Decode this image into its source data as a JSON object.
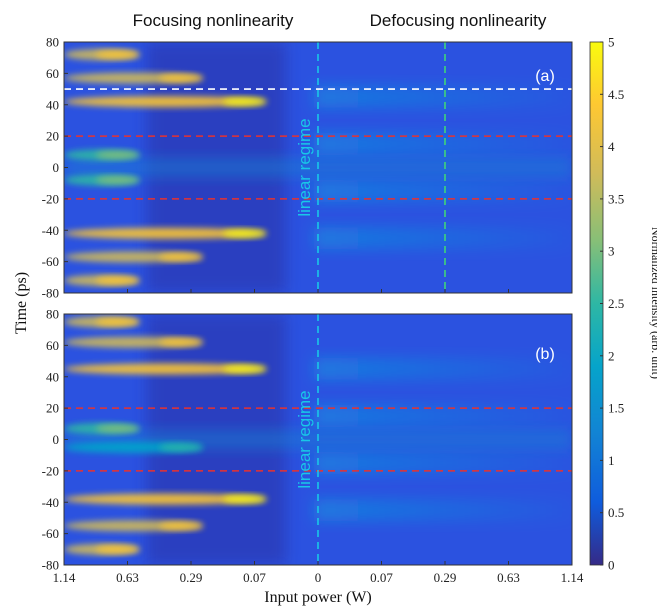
{
  "chart_data": {
    "type": "heatmap",
    "header_left": "Focusing nonlinearity",
    "header_right": "Defocusing nonlinearity",
    "xlabel": "Input power (W)",
    "ylabel": "Time (ps)",
    "colorbar_label": "Normalized intensity (arb. unit)",
    "colorbar_range": [
      0,
      5
    ],
    "colorbar_ticks": [
      "0",
      "0.5",
      "1",
      "1.5",
      "2",
      "2.5",
      "3",
      "3.5",
      "4",
      "4.5",
      "5"
    ],
    "x_ticks": [
      "1.14",
      "0.63",
      "0.29",
      "0.07",
      "0",
      "0.07",
      "0.29",
      "0.63",
      "1.14"
    ],
    "y_ticks": [
      "80",
      "60",
      "40",
      "20",
      "0",
      "-20",
      "-40",
      "-60",
      "-80"
    ],
    "ylim": [
      -80,
      80
    ],
    "colormap": "parula",
    "colors": {
      "background": "#2b52e0",
      "red_line": "#e8322f",
      "white_line": "#ffffff",
      "cyan_line": "#19c7e8",
      "green_line": "#3fd47a"
    },
    "panels": [
      {
        "label": "(a)",
        "regime_text": "linear regime",
        "lines": [
          {
            "orientation": "horizontal",
            "color": "white",
            "time_ps": 50
          },
          {
            "orientation": "horizontal",
            "color": "red",
            "time_ps": 20
          },
          {
            "orientation": "horizontal",
            "color": "red",
            "time_ps": -20
          },
          {
            "orientation": "vertical",
            "color": "cyan",
            "power_W": 0
          },
          {
            "orientation": "vertical",
            "color": "green",
            "power_W": 0.29,
            "side": "defocusing"
          }
        ],
        "features": [
          {
            "time_ps": 72,
            "x_from": 1.14,
            "x_to": 0.63,
            "peak": 4.0
          },
          {
            "time_ps": 57,
            "x_from": 1.14,
            "x_to": 0.29,
            "peak": 4.0
          },
          {
            "time_ps": 42,
            "x_from": 1.14,
            "x_to": 0.07,
            "peak": 4.4
          },
          {
            "time_ps": 8,
            "x_from": 1.14,
            "x_to": 0.63,
            "peak": 2.5
          },
          {
            "time_ps": -8,
            "x_from": 1.14,
            "x_to": 0.63,
            "peak": 2.5
          },
          {
            "time_ps": -42,
            "x_from": 1.14,
            "x_to": 0.07,
            "peak": 4.4
          },
          {
            "time_ps": -57,
            "x_from": 1.14,
            "x_to": 0.29,
            "peak": 4.0
          },
          {
            "time_ps": -72,
            "x_from": 1.14,
            "x_to": 0.63,
            "peak": 4.0
          }
        ]
      },
      {
        "label": "(b)",
        "regime_text": "linear regime",
        "lines": [
          {
            "orientation": "horizontal",
            "color": "red",
            "time_ps": 20
          },
          {
            "orientation": "horizontal",
            "color": "red",
            "time_ps": -20
          },
          {
            "orientation": "vertical",
            "color": "cyan",
            "power_W": 0
          }
        ],
        "features": [
          {
            "time_ps": 75,
            "x_from": 1.14,
            "x_to": 0.63,
            "peak": 4.0
          },
          {
            "time_ps": 62,
            "x_from": 1.14,
            "x_to": 0.29,
            "peak": 4.0
          },
          {
            "time_ps": 45,
            "x_from": 1.14,
            "x_to": 0.07,
            "peak": 4.5
          },
          {
            "time_ps": 7,
            "x_from": 1.14,
            "x_to": 0.63,
            "peak": 2.5
          },
          {
            "time_ps": -5,
            "x_from": 1.14,
            "x_to": 0.29,
            "peak": 2.0
          },
          {
            "time_ps": -38,
            "x_from": 1.14,
            "x_to": 0.07,
            "peak": 4.5
          },
          {
            "time_ps": -55,
            "x_from": 1.14,
            "x_to": 0.29,
            "peak": 4.0
          },
          {
            "time_ps": -70,
            "x_from": 1.14,
            "x_to": 0.63,
            "peak": 4.0
          }
        ]
      }
    ]
  }
}
